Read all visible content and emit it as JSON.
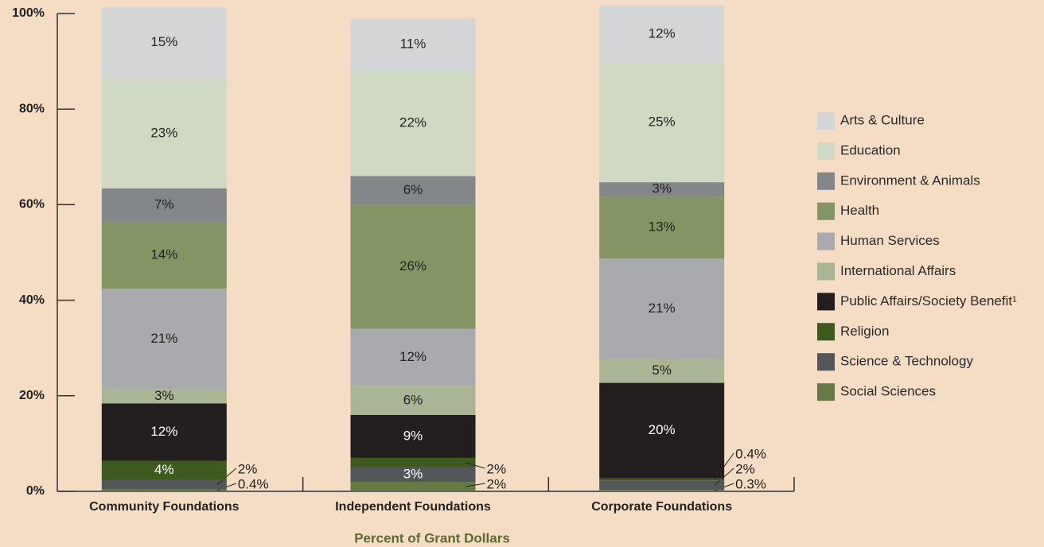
{
  "chart_data": {
    "type": "stacked_bar",
    "categories": [
      "Community Foundations",
      "Independent Foundations",
      "Corporate Foundations"
    ],
    "x_label": "Percent of Grant Dollars",
    "ylim": [
      0,
      100
    ],
    "yticks": [
      {
        "value": 0,
        "label": "0%"
      },
      {
        "value": 20,
        "label": "20%"
      },
      {
        "value": 40,
        "label": "40%"
      },
      {
        "value": 60,
        "label": "60%"
      },
      {
        "value": 80,
        "label": "80%"
      },
      {
        "value": 100,
        "label": "100%"
      }
    ],
    "legend": "right",
    "series": [
      {
        "name": "Arts & Culture",
        "color": "#d4d5d6",
        "values": [
          15,
          11,
          12
        ],
        "value_labels": [
          "15%",
          "11%",
          "12%"
        ]
      },
      {
        "name": "Education",
        "color": "#d0d9c4",
        "values": [
          23,
          22,
          25
        ],
        "value_labels": [
          "23%",
          "22%",
          "25%"
        ]
      },
      {
        "name": "Environment & Animals",
        "color": "#84878a",
        "values": [
          7,
          6,
          3
        ],
        "value_labels": [
          "7%",
          "6%",
          "3%"
        ]
      },
      {
        "name": "Health",
        "color": "#849565",
        "values": [
          14,
          26,
          13
        ],
        "value_labels": [
          "14%",
          "26%",
          "13%"
        ]
      },
      {
        "name": "Human Services",
        "color": "#a9aaae",
        "values": [
          21,
          12,
          21
        ],
        "value_labels": [
          "21%",
          "12%",
          "21%"
        ]
      },
      {
        "name": "International Affairs",
        "color": "#a9b594",
        "values": [
          3,
          6,
          5
        ],
        "value_labels": [
          "3%",
          "6%",
          "5%"
        ]
      },
      {
        "name": "Public Affairs/Society Benefit¹",
        "color": "#231f20",
        "values": [
          12,
          9,
          20
        ],
        "value_labels": [
          "12%",
          "9%",
          "20%"
        ]
      },
      {
        "name": "Religion",
        "color": "#3e5a1e",
        "values": [
          4,
          2,
          0.4
        ],
        "value_labels": [
          "4%",
          "2%",
          "0.4%"
        ]
      },
      {
        "name": "Science & Technology",
        "color": "#54575a",
        "values": [
          2,
          3,
          2
        ],
        "value_labels": [
          "2%",
          "3%",
          "2%"
        ]
      },
      {
        "name": "Social Sciences",
        "color": "#667a45",
        "values": [
          0.4,
          2,
          0.3
        ],
        "value_labels": [
          "0.4%",
          "2%",
          "0.3%"
        ]
      }
    ]
  }
}
